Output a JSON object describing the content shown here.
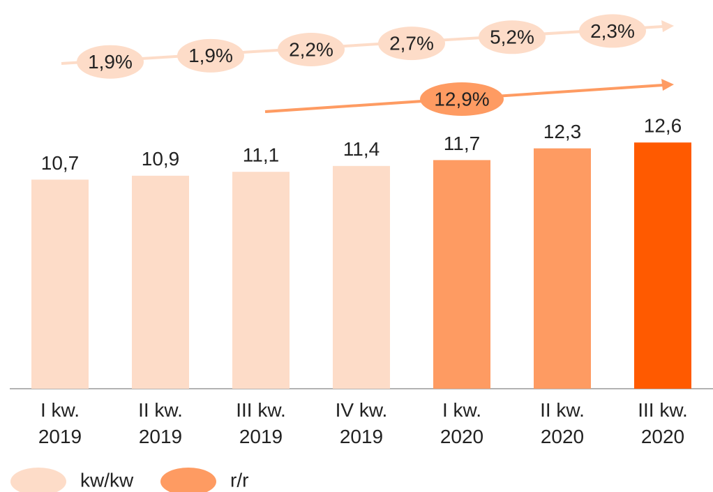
{
  "chart_data": {
    "type": "bar",
    "categories": [
      "I kw. 2019",
      "II kw. 2019",
      "III kw. 2019",
      "IV kw. 2019",
      "I kw. 2020",
      "II kw. 2020",
      "III kw. 2020"
    ],
    "values": [
      10.7,
      10.9,
      11.1,
      11.4,
      11.7,
      12.3,
      12.6
    ],
    "value_labels": [
      "10,7",
      "10,9",
      "11,1",
      "11,4",
      "11,7",
      "12,3",
      "12,6"
    ],
    "colors": [
      "#fddcc8",
      "#fddcc8",
      "#fddcc8",
      "#fddcc8",
      "#fe9b62",
      "#fe9b62",
      "#ff5a00"
    ],
    "ylim": [
      0,
      20
    ],
    "annotations": {
      "qoq": {
        "name": "kw/kw",
        "color": "#fddcc8",
        "labels": [
          "1,9%",
          "1,9%",
          "2,2%",
          "2,7%",
          "5,2%",
          "2,3%"
        ]
      },
      "yoy": {
        "name": "r/r",
        "color": "#fe9b62",
        "label": "12,9%"
      }
    }
  }
}
